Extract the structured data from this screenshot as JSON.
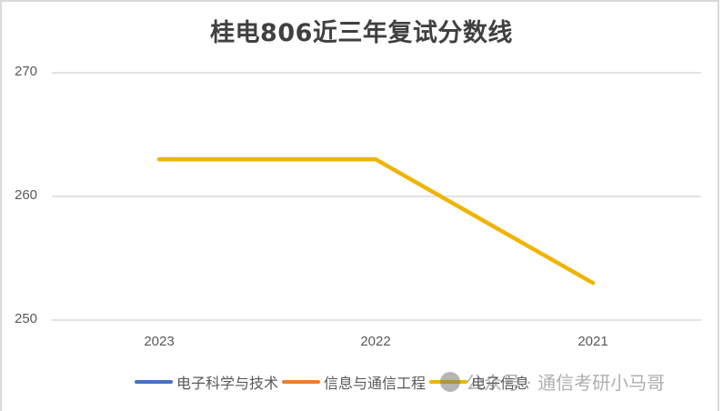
{
  "title": "桂电806近三年复试分数线",
  "y_axis": {
    "ticks": [
      "270",
      "260",
      "250"
    ]
  },
  "x_axis": {
    "ticks": [
      "2023",
      "2022",
      "2021"
    ]
  },
  "legend": [
    {
      "label": "电子科学与技术",
      "color": "#4472c4"
    },
    {
      "label": "信息与通信工程",
      "color": "#ed7d31"
    },
    {
      "label": "电子信息",
      "color": "#f0b400"
    }
  ],
  "watermark": {
    "text": "公众号 · 通信考研小马哥"
  },
  "chart_data": {
    "type": "line",
    "title": "桂电806近三年复试分数线",
    "categories": [
      "2023",
      "2022",
      "2021"
    ],
    "series": [
      {
        "name": "电子科学与技术",
        "values": [
          null,
          null,
          null
        ],
        "color": "#4472c4"
      },
      {
        "name": "信息与通信工程",
        "values": [
          null,
          null,
          null
        ],
        "color": "#ed7d31"
      },
      {
        "name": "电子信息",
        "values": [
          263,
          263,
          253
        ],
        "color": "#f0b400"
      }
    ],
    "xlabel": "",
    "ylabel": "",
    "ylim": [
      250,
      270
    ],
    "yticks": [
      250,
      260,
      270
    ],
    "grid": true,
    "legend_position": "bottom"
  }
}
